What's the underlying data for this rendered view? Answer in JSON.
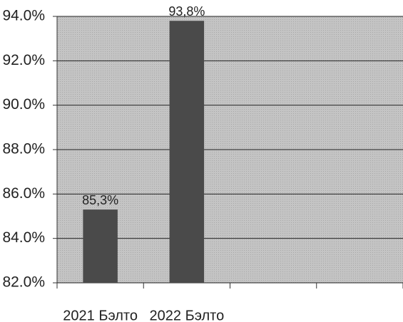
{
  "chart_data": {
    "type": "bar",
    "categories": [
      "2021 Бэлто",
      "2022 Бэлто",
      null,
      null
    ],
    "values": [
      85.3,
      93.8,
      null,
      null
    ],
    "value_labels": [
      "85,3%",
      "93,8%",
      null,
      null
    ],
    "color": "#4a4a4a",
    "ylim": [
      82,
      94
    ],
    "yticks": [
      {
        "value": 82,
        "label": "82.0%"
      },
      {
        "value": 84,
        "label": "84.0%"
      },
      {
        "value": 86,
        "label": "86.0%"
      },
      {
        "value": 88,
        "label": "88.0%"
      },
      {
        "value": 90,
        "label": "90.0%"
      },
      {
        "value": 92,
        "label": "92.0%"
      },
      {
        "value": 94,
        "label": "94.0%"
      }
    ],
    "grid": true
  }
}
